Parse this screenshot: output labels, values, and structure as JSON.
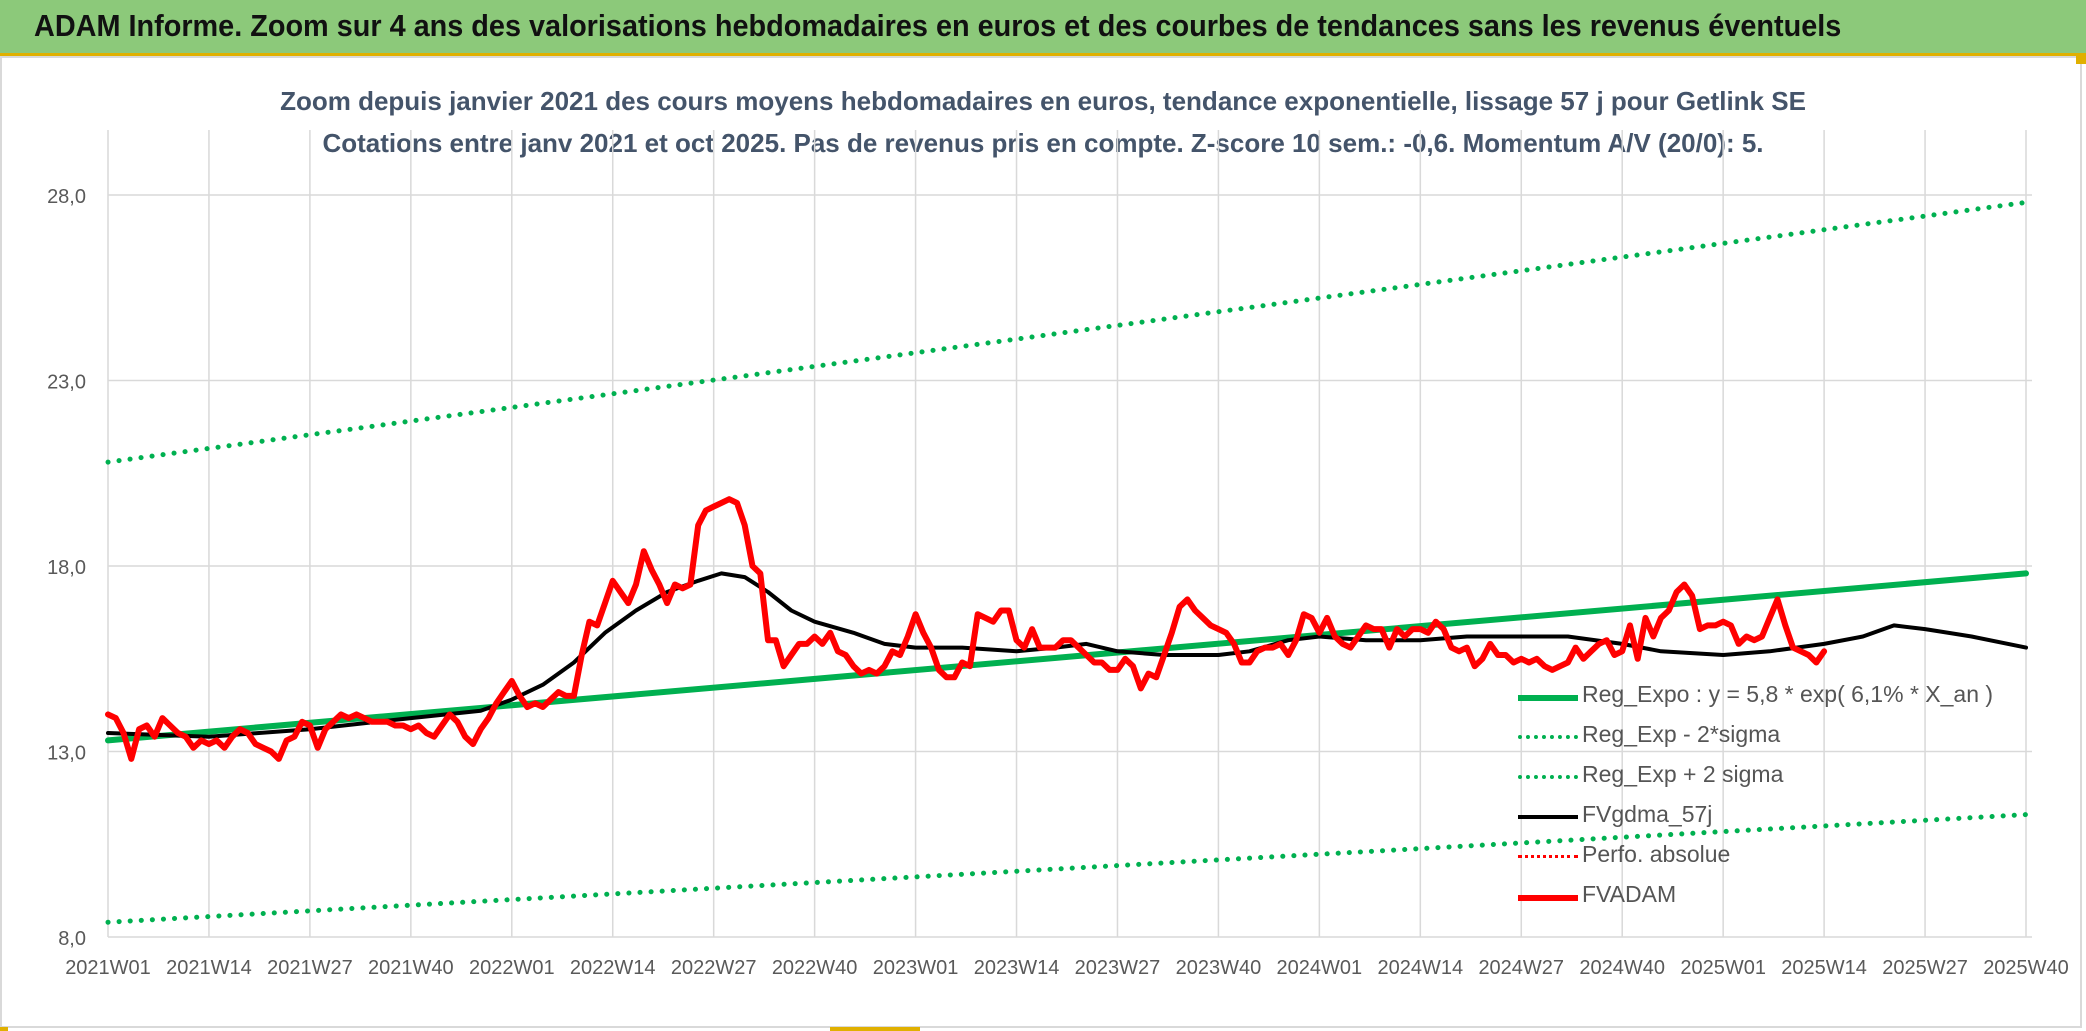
{
  "banner": {
    "title": "ADAM Informe. Zoom sur 4 ans des valorisations hebdomadaires en euros et des courbes de tendances sans les revenus éventuels"
  },
  "colors": {
    "banner_bg": "#8cc97a",
    "accent": "#e0b000",
    "green": "#00b050",
    "red": "#ff0000",
    "black": "#000000"
  },
  "chart_data": {
    "type": "line",
    "title_line1": "Zoom depuis janvier 2021 des cours moyens hebdomadaires en euros, tendance exponentielle, lissage 57 j pour Getlink SE",
    "title_line2": "Cotations entre janv 2021 et oct 2025. Pas de revenus pris en compte. Z-score 10 sem.: -0,6. Momentum A/V (20/0): 5.",
    "x_range_weeks": [
      0,
      247
    ],
    "x_ticks": [
      {
        "label": "2021W01",
        "week": 0
      },
      {
        "label": "2021W14",
        "week": 13
      },
      {
        "label": "2021W27",
        "week": 26
      },
      {
        "label": "2021W40",
        "week": 39
      },
      {
        "label": "2022W01",
        "week": 52
      },
      {
        "label": "2022W14",
        "week": 65
      },
      {
        "label": "2022W27",
        "week": 78
      },
      {
        "label": "2022W40",
        "week": 91
      },
      {
        "label": "2023W01",
        "week": 104
      },
      {
        "label": "2023W14",
        "week": 117
      },
      {
        "label": "2023W27",
        "week": 130
      },
      {
        "label": "2023W40",
        "week": 143
      },
      {
        "label": "2024W01",
        "week": 156
      },
      {
        "label": "2024W14",
        "week": 169
      },
      {
        "label": "2024W27",
        "week": 182
      },
      {
        "label": "2024W40",
        "week": 195
      },
      {
        "label": "2025W01",
        "week": 208
      },
      {
        "label": "2025W14",
        "week": 221
      },
      {
        "label": "2025W27",
        "week": 234
      },
      {
        "label": "2025W40",
        "week": 247
      }
    ],
    "y_ticks": [
      "8,0",
      "13,0",
      "18,0",
      "23,0",
      "28,0"
    ],
    "ylim": [
      8,
      28
    ],
    "grid": true,
    "legend_position": "right",
    "series": [
      {
        "name": "Reg_Expo : y = 5,8 * exp( 6,1% *  X_an )",
        "color": "#00b050",
        "style": "solid",
        "width": 6,
        "points": [
          [
            0,
            13.3
          ],
          [
            247,
            17.8
          ]
        ]
      },
      {
        "name": "Reg_Exp - 2*sigma",
        "color": "#00b050",
        "style": "dotted",
        "width": 5,
        "points": [
          [
            0,
            8.4
          ],
          [
            247,
            11.3
          ]
        ]
      },
      {
        "name": "Reg_Exp + 2 sigma",
        "color": "#00b050",
        "style": "dotted",
        "width": 5,
        "points": [
          [
            0,
            20.8
          ],
          [
            247,
            27.8
          ]
        ]
      },
      {
        "name": "FVgdma_57j",
        "color": "#000000",
        "style": "solid",
        "width": 4,
        "points": [
          [
            0,
            13.5
          ],
          [
            13,
            13.4
          ],
          [
            26,
            13.6
          ],
          [
            39,
            13.9
          ],
          [
            48,
            14.1
          ],
          [
            52,
            14.4
          ],
          [
            56,
            14.8
          ],
          [
            60,
            15.4
          ],
          [
            64,
            16.2
          ],
          [
            68,
            16.8
          ],
          [
            72,
            17.3
          ],
          [
            76,
            17.6
          ],
          [
            79,
            17.8
          ],
          [
            82,
            17.7
          ],
          [
            85,
            17.3
          ],
          [
            88,
            16.8
          ],
          [
            91,
            16.5
          ],
          [
            96,
            16.2
          ],
          [
            100,
            15.9
          ],
          [
            104,
            15.8
          ],
          [
            110,
            15.8
          ],
          [
            117,
            15.7
          ],
          [
            122,
            15.8
          ],
          [
            126,
            15.9
          ],
          [
            130,
            15.7
          ],
          [
            136,
            15.6
          ],
          [
            143,
            15.6
          ],
          [
            147,
            15.7
          ],
          [
            152,
            16.0
          ],
          [
            156,
            16.1
          ],
          [
            162,
            16.0
          ],
          [
            169,
            16.0
          ],
          [
            175,
            16.1
          ],
          [
            182,
            16.1
          ],
          [
            188,
            16.1
          ],
          [
            195,
            15.9
          ],
          [
            200,
            15.7
          ],
          [
            208,
            15.6
          ],
          [
            214,
            15.7
          ],
          [
            221,
            15.9
          ],
          [
            226,
            16.1
          ],
          [
            230,
            16.4
          ],
          [
            234,
            16.3
          ],
          [
            240,
            16.1
          ],
          [
            247,
            15.8
          ]
        ]
      },
      {
        "name": "Perfo. absolue",
        "color": "#ff0000",
        "style": "dotted",
        "width": 3,
        "points": []
      },
      {
        "name": "FVADAM",
        "color": "#ff0000",
        "style": "solid",
        "width": 6,
        "points": [
          [
            0,
            14.0
          ],
          [
            1,
            13.9
          ],
          [
            2,
            13.5
          ],
          [
            3,
            12.8
          ],
          [
            4,
            13.6
          ],
          [
            5,
            13.7
          ],
          [
            6,
            13.4
          ],
          [
            7,
            13.9
          ],
          [
            8,
            13.7
          ],
          [
            9,
            13.5
          ],
          [
            10,
            13.4
          ],
          [
            11,
            13.1
          ],
          [
            12,
            13.3
          ],
          [
            13,
            13.2
          ],
          [
            14,
            13.3
          ],
          [
            15,
            13.1
          ],
          [
            16,
            13.4
          ],
          [
            17,
            13.6
          ],
          [
            18,
            13.5
          ],
          [
            19,
            13.2
          ],
          [
            20,
            13.1
          ],
          [
            21,
            13.0
          ],
          [
            22,
            12.8
          ],
          [
            23,
            13.3
          ],
          [
            24,
            13.4
          ],
          [
            25,
            13.8
          ],
          [
            26,
            13.7
          ],
          [
            27,
            13.1
          ],
          [
            28,
            13.6
          ],
          [
            29,
            13.8
          ],
          [
            30,
            14.0
          ],
          [
            31,
            13.9
          ],
          [
            32,
            14.0
          ],
          [
            33,
            13.9
          ],
          [
            34,
            13.8
          ],
          [
            35,
            13.8
          ],
          [
            36,
            13.8
          ],
          [
            37,
            13.7
          ],
          [
            38,
            13.7
          ],
          [
            39,
            13.6
          ],
          [
            40,
            13.7
          ],
          [
            41,
            13.5
          ],
          [
            42,
            13.4
          ],
          [
            43,
            13.7
          ],
          [
            44,
            14.0
          ],
          [
            45,
            13.8
          ],
          [
            46,
            13.4
          ],
          [
            47,
            13.2
          ],
          [
            48,
            13.6
          ],
          [
            49,
            13.9
          ],
          [
            50,
            14.3
          ],
          [
            51,
            14.6
          ],
          [
            52,
            14.9
          ],
          [
            53,
            14.5
          ],
          [
            54,
            14.2
          ],
          [
            55,
            14.3
          ],
          [
            56,
            14.2
          ],
          [
            57,
            14.4
          ],
          [
            58,
            14.6
          ],
          [
            59,
            14.5
          ],
          [
            60,
            14.5
          ],
          [
            61,
            15.6
          ],
          [
            62,
            16.5
          ],
          [
            63,
            16.4
          ],
          [
            64,
            17.0
          ],
          [
            65,
            17.6
          ],
          [
            66,
            17.3
          ],
          [
            67,
            17.0
          ],
          [
            68,
            17.5
          ],
          [
            69,
            18.4
          ],
          [
            70,
            17.9
          ],
          [
            71,
            17.5
          ],
          [
            72,
            17.0
          ],
          [
            73,
            17.5
          ],
          [
            74,
            17.4
          ],
          [
            75,
            17.5
          ],
          [
            76,
            19.1
          ],
          [
            77,
            19.5
          ],
          [
            78,
            19.6
          ],
          [
            79,
            19.7
          ],
          [
            80,
            19.8
          ],
          [
            81,
            19.7
          ],
          [
            82,
            19.1
          ],
          [
            83,
            18.0
          ],
          [
            84,
            17.8
          ],
          [
            85,
            16.0
          ],
          [
            86,
            16.0
          ],
          [
            87,
            15.3
          ],
          [
            88,
            15.6
          ],
          [
            89,
            15.9
          ],
          [
            90,
            15.9
          ],
          [
            91,
            16.1
          ],
          [
            92,
            15.9
          ],
          [
            93,
            16.2
          ],
          [
            94,
            15.7
          ],
          [
            95,
            15.6
          ],
          [
            96,
            15.3
          ],
          [
            97,
            15.1
          ],
          [
            98,
            15.2
          ],
          [
            99,
            15.1
          ],
          [
            100,
            15.3
          ],
          [
            101,
            15.7
          ],
          [
            102,
            15.6
          ],
          [
            103,
            16.1
          ],
          [
            104,
            16.7
          ],
          [
            105,
            16.2
          ],
          [
            106,
            15.8
          ],
          [
            107,
            15.2
          ],
          [
            108,
            15.0
          ],
          [
            109,
            15.0
          ],
          [
            110,
            15.4
          ],
          [
            111,
            15.3
          ],
          [
            112,
            16.7
          ],
          [
            113,
            16.6
          ],
          [
            114,
            16.5
          ],
          [
            115,
            16.8
          ],
          [
            116,
            16.8
          ],
          [
            117,
            16.0
          ],
          [
            118,
            15.8
          ],
          [
            119,
            16.3
          ],
          [
            120,
            15.8
          ],
          [
            121,
            15.8
          ],
          [
            122,
            15.8
          ],
          [
            123,
            16.0
          ],
          [
            124,
            16.0
          ],
          [
            125,
            15.8
          ],
          [
            126,
            15.6
          ],
          [
            127,
            15.4
          ],
          [
            128,
            15.4
          ],
          [
            129,
            15.2
          ],
          [
            130,
            15.2
          ],
          [
            131,
            15.5
          ],
          [
            132,
            15.3
          ],
          [
            133,
            14.7
          ],
          [
            134,
            15.1
          ],
          [
            135,
            15.0
          ],
          [
            136,
            15.6
          ],
          [
            137,
            16.2
          ],
          [
            138,
            16.9
          ],
          [
            139,
            17.1
          ],
          [
            140,
            16.8
          ],
          [
            141,
            16.6
          ],
          [
            142,
            16.4
          ],
          [
            143,
            16.3
          ],
          [
            144,
            16.2
          ],
          [
            145,
            15.9
          ],
          [
            146,
            15.4
          ],
          [
            147,
            15.4
          ],
          [
            148,
            15.7
          ],
          [
            149,
            15.8
          ],
          [
            150,
            15.8
          ],
          [
            151,
            15.9
          ],
          [
            152,
            15.6
          ],
          [
            153,
            16.0
          ],
          [
            154,
            16.7
          ],
          [
            155,
            16.6
          ],
          [
            156,
            16.2
          ],
          [
            157,
            16.6
          ],
          [
            158,
            16.1
          ],
          [
            159,
            15.9
          ],
          [
            160,
            15.8
          ],
          [
            161,
            16.1
          ],
          [
            162,
            16.4
          ],
          [
            163,
            16.3
          ],
          [
            164,
            16.3
          ],
          [
            165,
            15.8
          ],
          [
            166,
            16.3
          ],
          [
            167,
            16.1
          ],
          [
            168,
            16.3
          ],
          [
            169,
            16.3
          ],
          [
            170,
            16.2
          ],
          [
            171,
            16.5
          ],
          [
            172,
            16.3
          ],
          [
            173,
            15.8
          ],
          [
            174,
            15.7
          ],
          [
            175,
            15.8
          ],
          [
            176,
            15.3
          ],
          [
            177,
            15.5
          ],
          [
            178,
            15.9
          ],
          [
            179,
            15.6
          ],
          [
            180,
            15.6
          ],
          [
            181,
            15.4
          ],
          [
            182,
            15.5
          ],
          [
            183,
            15.4
          ],
          [
            184,
            15.5
          ],
          [
            185,
            15.3
          ],
          [
            186,
            15.2
          ],
          [
            187,
            15.3
          ],
          [
            188,
            15.4
          ],
          [
            189,
            15.8
          ],
          [
            190,
            15.5
          ],
          [
            191,
            15.7
          ],
          [
            192,
            15.9
          ],
          [
            193,
            16.0
          ],
          [
            194,
            15.6
          ],
          [
            195,
            15.7
          ],
          [
            196,
            16.4
          ],
          [
            197,
            15.5
          ],
          [
            198,
            16.6
          ],
          [
            199,
            16.1
          ],
          [
            200,
            16.6
          ],
          [
            201,
            16.8
          ],
          [
            202,
            17.3
          ],
          [
            203,
            17.5
          ],
          [
            204,
            17.2
          ],
          [
            205,
            16.3
          ],
          [
            206,
            16.4
          ],
          [
            207,
            16.4
          ],
          [
            208,
            16.5
          ],
          [
            209,
            16.4
          ],
          [
            210,
            15.9
          ],
          [
            211,
            16.1
          ],
          [
            212,
            16.0
          ],
          [
            213,
            16.1
          ],
          [
            214,
            16.6
          ],
          [
            215,
            17.1
          ],
          [
            216,
            16.4
          ],
          [
            217,
            15.8
          ],
          [
            218,
            15.7
          ],
          [
            219,
            15.6
          ],
          [
            220,
            15.4
          ],
          [
            221,
            15.7
          ]
        ]
      }
    ]
  }
}
